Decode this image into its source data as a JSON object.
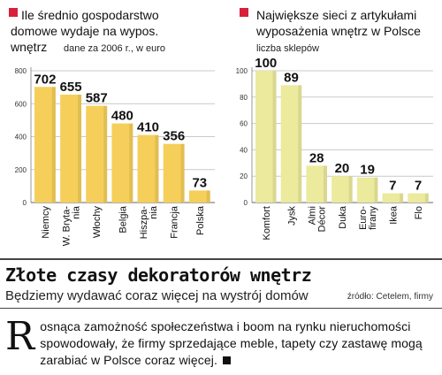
{
  "chart_data": [
    {
      "type": "bar",
      "title": "Ile średnio gospodarstwo domowe wydaje na wypos. wnętrz",
      "subtitle": "dane za 2006 r., w euro",
      "categories": [
        "Niemcy",
        "W. Brytania",
        "Włochy",
        "Belgia",
        "Hiszpania",
        "Francja",
        "Polska"
      ],
      "category_lines": [
        [
          "Niemcy"
        ],
        [
          "W. Bryta-",
          "nia"
        ],
        [
          "Włochy"
        ],
        [
          "Belgia"
        ],
        [
          "Hiszpa-",
          "nia"
        ],
        [
          "Francja"
        ],
        [
          "Polska"
        ]
      ],
      "values": [
        702,
        655,
        587,
        480,
        410,
        356,
        73
      ],
      "ylim": [
        0,
        800
      ],
      "yticks": [
        0,
        200,
        400,
        600,
        800
      ],
      "grid": true,
      "bar_color": "#f5cf5a",
      "marker_color": "#d9203a"
    },
    {
      "type": "bar",
      "title": "Największe sieci z artykułami wyposażenia wnętrz w Polsce",
      "subtitle": "liczba sklepów",
      "categories": [
        "Komfort",
        "Jysk",
        "Almi Décor",
        "Duka",
        "Euro-firany",
        "Ikea",
        "Flo"
      ],
      "category_lines": [
        [
          "Komfort"
        ],
        [
          "Jysk"
        ],
        [
          "Almi",
          "Décor"
        ],
        [
          "Duka"
        ],
        [
          "Euro-",
          "firany"
        ],
        [
          "Ikea"
        ],
        [
          "Flo"
        ]
      ],
      "values": [
        100,
        89,
        28,
        20,
        19,
        7,
        7
      ],
      "ylim": [
        0,
        100
      ],
      "yticks": [
        0,
        20,
        40,
        60,
        80,
        100
      ],
      "grid": true,
      "bar_color": "#ecea9c",
      "marker_color": "#d9203a"
    }
  ],
  "article": {
    "headline": "Złote czasy dekoratorów wnętrz",
    "subheadline": "Będziemy wydawać coraz więcej na wystrój domów",
    "source": "źródło: Cetelem, firmy",
    "dropcap": "R",
    "body": "osnąca zamożność społeczeństwa i boom na rynku nieruchomości spowodowały, że firmy sprzedające meble, tapety czy zastawę mogą zarabiać w Polsce coraz więcej."
  }
}
